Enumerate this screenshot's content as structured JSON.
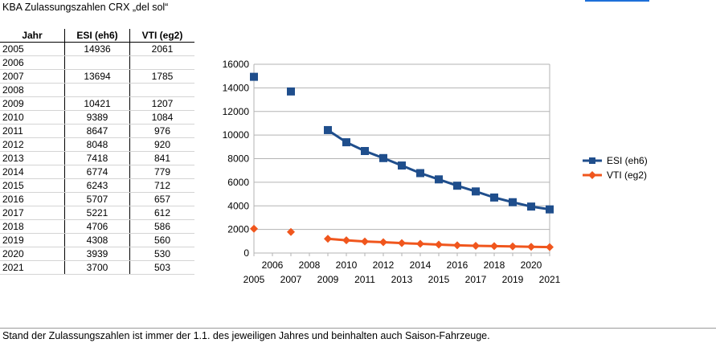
{
  "sheet_title": "KBA Zulassungszahlen CRX „del sol“",
  "table": {
    "headers": [
      "Jahr",
      "ESI (eh6)",
      "VTI (eg2)"
    ],
    "rows": [
      {
        "year": "2005",
        "esi": "14936",
        "vti": "2061"
      },
      {
        "year": "2006",
        "esi": "",
        "vti": ""
      },
      {
        "year": "2007",
        "esi": "13694",
        "vti": "1785"
      },
      {
        "year": "2008",
        "esi": "",
        "vti": ""
      },
      {
        "year": "2009",
        "esi": "10421",
        "vti": "1207"
      },
      {
        "year": "2010",
        "esi": "9389",
        "vti": "1084"
      },
      {
        "year": "2011",
        "esi": "8647",
        "vti": "976"
      },
      {
        "year": "2012",
        "esi": "8048",
        "vti": "920"
      },
      {
        "year": "2013",
        "esi": "7418",
        "vti": "841"
      },
      {
        "year": "2014",
        "esi": "6774",
        "vti": "779"
      },
      {
        "year": "2015",
        "esi": "6243",
        "vti": "712"
      },
      {
        "year": "2016",
        "esi": "5707",
        "vti": "657"
      },
      {
        "year": "2017",
        "esi": "5221",
        "vti": "612"
      },
      {
        "year": "2018",
        "esi": "4706",
        "vti": "586"
      },
      {
        "year": "2019",
        "esi": "4308",
        "vti": "560"
      },
      {
        "year": "2020",
        "esi": "3939",
        "vti": "530"
      },
      {
        "year": "2021",
        "esi": "3700",
        "vti": "503"
      }
    ]
  },
  "footer_note": "Stand der Zulassungszahlen ist immer der 1.1. des jeweiligen Jahres und beinhalten auch Saison-Fahrzeuge.",
  "chart_data": {
    "type": "line",
    "x": [
      2005,
      2006,
      2007,
      2008,
      2009,
      2010,
      2011,
      2012,
      2013,
      2014,
      2015,
      2016,
      2017,
      2018,
      2019,
      2020,
      2021
    ],
    "series": [
      {
        "name": "ESI (eh6)",
        "color": "#1f4e8c",
        "marker": "square",
        "values": [
          14936,
          null,
          13694,
          null,
          10421,
          9389,
          8647,
          8048,
          7418,
          6774,
          6243,
          5707,
          5221,
          4706,
          4308,
          3939,
          3700
        ]
      },
      {
        "name": "VTI (eg2)",
        "color": "#f0561d",
        "marker": "diamond",
        "values": [
          2061,
          null,
          1785,
          null,
          1207,
          1084,
          976,
          920,
          841,
          779,
          712,
          657,
          612,
          586,
          560,
          530,
          503
        ]
      }
    ],
    "ylim": [
      0,
      16000
    ],
    "yticks": [
      0,
      2000,
      4000,
      6000,
      8000,
      10000,
      12000,
      14000,
      16000
    ],
    "xticks_upper": [
      "2006",
      "2008",
      "2010",
      "2012",
      "2014",
      "2016",
      "2018",
      "2020"
    ],
    "xticks_lower": [
      "2005",
      "2007",
      "2009",
      "2011",
      "2013",
      "2015",
      "2017",
      "2019",
      "2021"
    ],
    "grid": true,
    "legend": "right"
  }
}
